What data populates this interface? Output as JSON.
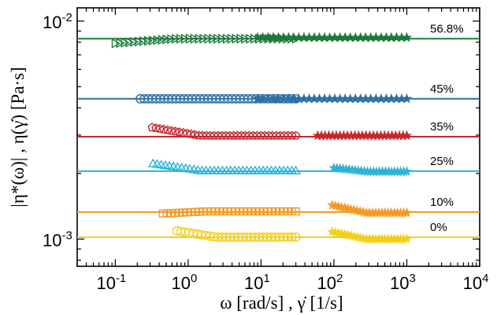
{
  "chart_data": {
    "type": "scatter",
    "x_scale": "log",
    "y_scale": "log",
    "xlim": [
      0.03,
      10000
    ],
    "ylim": [
      0.00075,
      0.0115
    ],
    "grid": false,
    "xlabel": "ω [rad/s] ,  γ̇ [1/s]",
    "ylabel": "|η*(ω)| ,  η(γ̇)  [Pa·s]",
    "x_ticks": [
      {
        "value": 0.1,
        "mantissa": "10",
        "exp": "-1"
      },
      {
        "value": 1,
        "mantissa": "10",
        "exp": "0"
      },
      {
        "value": 10,
        "mantissa": "10",
        "exp": "1"
      },
      {
        "value": 100,
        "mantissa": "10",
        "exp": "2"
      },
      {
        "value": 1000,
        "mantissa": "10",
        "exp": "3"
      },
      {
        "value": 10000,
        "mantissa": "10",
        "exp": "4"
      }
    ],
    "y_ticks": [
      {
        "value": 0.001,
        "mantissa": "10",
        "exp": "-3"
      },
      {
        "value": 0.01,
        "mantissa": "10",
        "exp": "-2"
      }
    ],
    "series": [
      {
        "label": "56.8%",
        "color": "#1e7a3a",
        "marker": "triangle-right",
        "fit_value": 0.0083,
        "oscillatory": {
          "x_start": 0.1,
          "x_end": 30,
          "n": 40,
          "values_start": 0.0079,
          "values_end": 0.0083
        },
        "steady": {
          "x_start": 9,
          "x_end": 1000,
          "n": 30,
          "value": 0.0084
        }
      },
      {
        "label": "45%",
        "color": "#2a6fa6",
        "marker": "circle",
        "fit_value": 0.0044,
        "oscillatory": {
          "x_start": 0.22,
          "x_end": 30,
          "n": 40,
          "values_start": 0.0044,
          "values_end": 0.0044
        },
        "steady": {
          "x_start": 9,
          "x_end": 1000,
          "n": 30,
          "value": 0.0044
        }
      },
      {
        "label": "35%",
        "color": "#c8262c",
        "marker": "pentagon",
        "fit_value": 0.00295,
        "oscillatory": {
          "x_start": 0.32,
          "x_end": 30,
          "n": 38,
          "values_start": 0.00325,
          "values_end": 0.00298
        },
        "steady": {
          "x_start": 60,
          "x_end": 1000,
          "n": 25,
          "value": 0.00298
        }
      },
      {
        "label": "25%",
        "color": "#2cb4d6",
        "marker": "triangle-up",
        "fit_value": 0.00205,
        "oscillatory": {
          "x_start": 0.33,
          "x_end": 30,
          "n": 36,
          "values_start": 0.00222,
          "values_end": 0.00206
        },
        "steady": {
          "x_start": 100,
          "x_end": 1000,
          "n": 25,
          "values_start": 0.00212,
          "values_end": 0.00204
        }
      },
      {
        "label": "10%",
        "color": "#f19a26",
        "marker": "square",
        "fit_value": 0.00133,
        "oscillatory": {
          "x_start": 0.45,
          "x_end": 30,
          "n": 34,
          "values_start": 0.00131,
          "values_end": 0.00134
        },
        "steady": {
          "x_start": 95,
          "x_end": 1000,
          "n": 25,
          "values_start": 0.00143,
          "values_end": 0.00132
        }
      },
      {
        "label": "0%",
        "color": "#f2cf1a",
        "marker": "circle",
        "fit_value": 0.00102,
        "oscillatory": {
          "x_start": 0.7,
          "x_end": 30,
          "n": 30,
          "values_start": 0.00109,
          "values_end": 0.00102
        },
        "steady": {
          "x_start": 95,
          "x_end": 1000,
          "n": 25,
          "values_start": 0.00108,
          "values_end": 0.001
        }
      }
    ]
  }
}
